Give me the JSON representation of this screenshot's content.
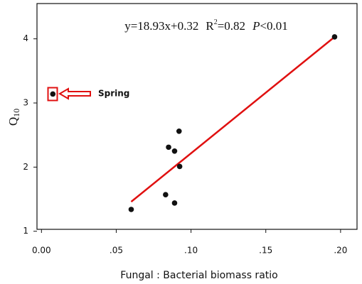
{
  "chart_data": {
    "type": "scatter",
    "x_label": "Fungal : Bacterial biomass ratio",
    "y_label": {
      "main": "Q",
      "sub": "10"
    },
    "equation": {
      "fit": "y=18.93x+0.32",
      "r": "R",
      "r_sup": "2",
      "r_val": "=0.82",
      "p": "P",
      "p_val": "<0.01"
    },
    "annotation": "Spring",
    "series": [
      {
        "color": "#111111",
        "x": [
          0.0076,
          0.196,
          0.092,
          0.085,
          0.089,
          0.0924,
          0.083,
          0.089,
          0.06
        ],
        "values": [
          3.14,
          4.03,
          2.56,
          2.31,
          2.25,
          2.01,
          1.57,
          1.44,
          1.34
        ]
      }
    ],
    "fit_line": {
      "color": "#e01010",
      "x": [
        0.06,
        0.196
      ],
      "values": [
        1.46,
        4.03
      ]
    },
    "xlim": [
      -0.003,
      0.211
    ],
    "ylim": [
      1.03,
      4.55
    ],
    "xticks": [
      {
        "value": 0,
        "label": "0.00"
      },
      {
        "value": 0.05,
        "label": ".05"
      },
      {
        "value": 0.1,
        "label": ".10"
      },
      {
        "value": 0.15,
        "label": ".15"
      },
      {
        "value": 0.2,
        "label": ".20"
      }
    ],
    "yticks": [
      1,
      2,
      3,
      4
    ]
  }
}
